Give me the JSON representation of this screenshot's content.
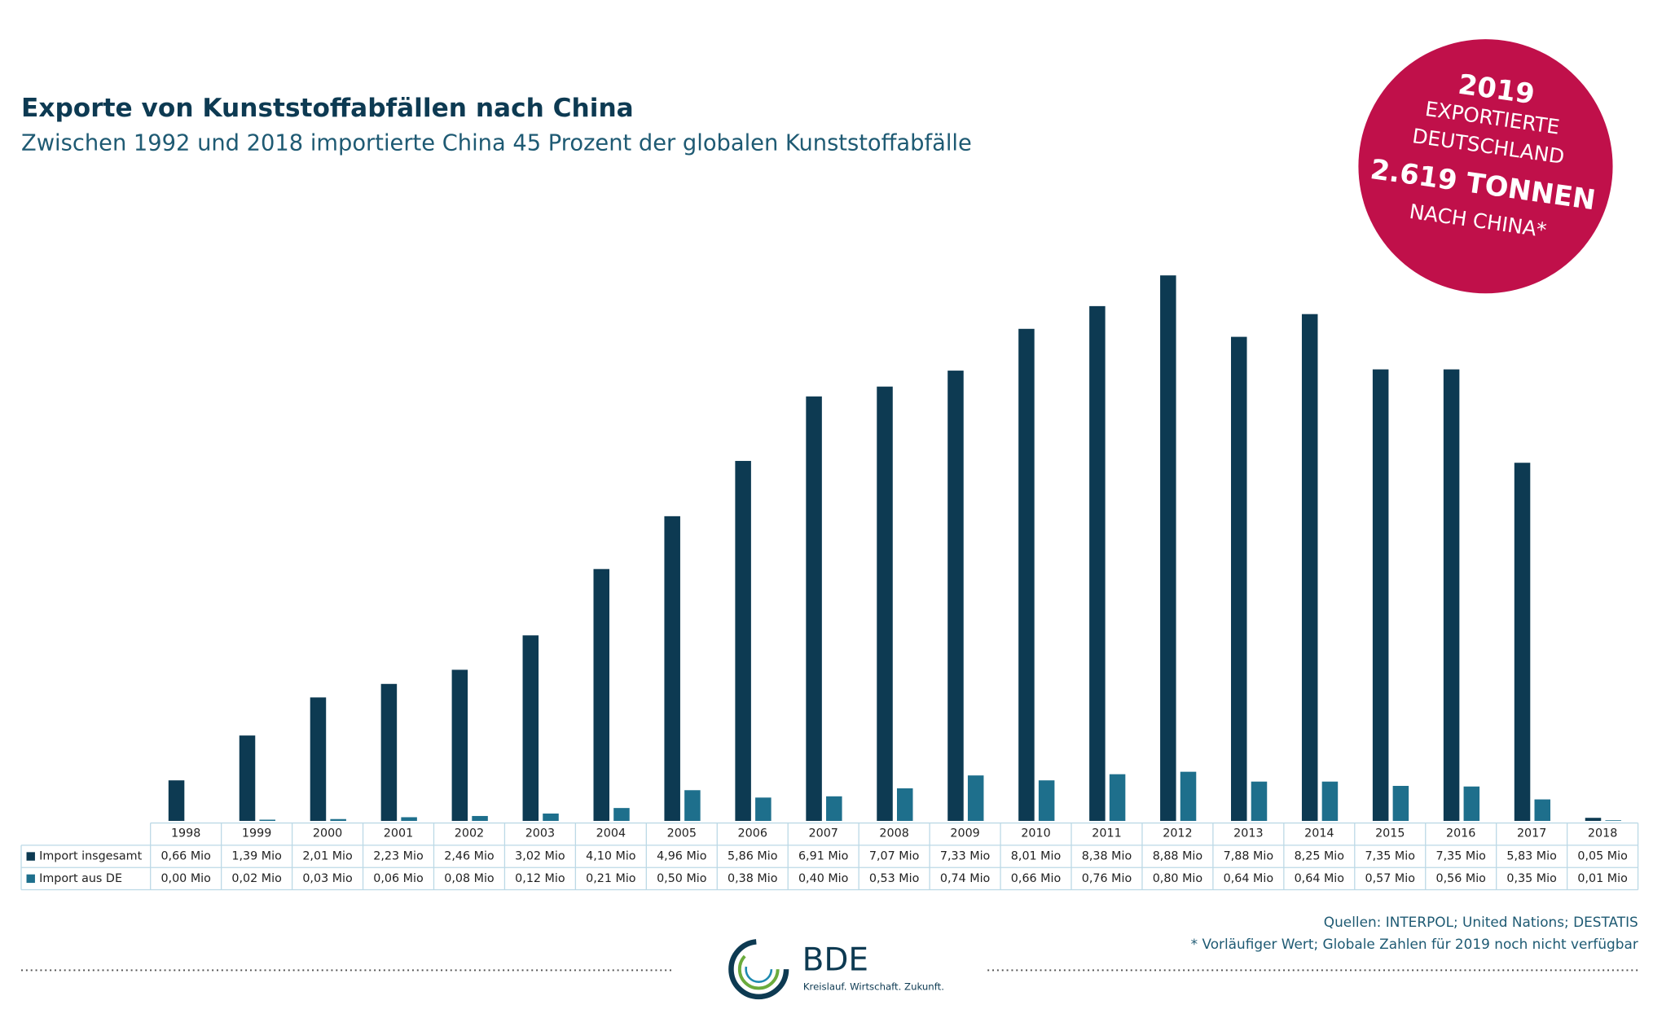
{
  "chart_data": {
    "type": "bar",
    "title": "Exporte von Kunststoffabfällen nach China",
    "subtitle": "Zwischen 1992 und 2018 importierte China 45 Prozent der globalen Kunststoffabfälle",
    "categories": [
      "1998",
      "1999",
      "2000",
      "2001",
      "2002",
      "2003",
      "2004",
      "2005",
      "2006",
      "2007",
      "2008",
      "2009",
      "2010",
      "2011",
      "2012",
      "2013",
      "2014",
      "2015",
      "2016",
      "2017",
      "2018"
    ],
    "series": [
      {
        "name": "Import insgesamt",
        "color": "#0d3a52",
        "values": [
          0.66,
          1.39,
          2.01,
          2.23,
          2.46,
          3.02,
          4.1,
          4.96,
          5.86,
          6.91,
          7.07,
          7.33,
          8.01,
          8.38,
          8.88,
          7.88,
          8.25,
          7.35,
          7.35,
          5.83,
          0.05
        ],
        "value_labels": [
          "0,66 Mio",
          "1,39 Mio",
          "2,01 Mio",
          "2,23 Mio",
          "2,46 Mio",
          "3,02 Mio",
          "4,10 Mio",
          "4,96 Mio",
          "5,86 Mio",
          "6,91 Mio",
          "7,07 Mio",
          "7,33 Mio",
          "8,01 Mio",
          "8,38 Mio",
          "8,88 Mio",
          "7,88 Mio",
          "8,25 Mio",
          "7,35 Mio",
          "7,35 Mio",
          "5,83 Mio",
          "0,05 Mio"
        ]
      },
      {
        "name": "Import aus DE",
        "color": "#1e6f8c",
        "values": [
          0.0,
          0.02,
          0.03,
          0.06,
          0.08,
          0.12,
          0.21,
          0.5,
          0.38,
          0.4,
          0.53,
          0.74,
          0.66,
          0.76,
          0.8,
          0.64,
          0.64,
          0.57,
          0.56,
          0.35,
          0.01
        ],
        "value_labels": [
          "0,00 Mio",
          "0,02 Mio",
          "0,03 Mio",
          "0,06 Mio",
          "0,08 Mio",
          "0,12 Mio",
          "0,21 Mio",
          "0,50 Mio",
          "0,38 Mio",
          "0,40 Mio",
          "0,53 Mio",
          "0,74 Mio",
          "0,66 Mio",
          "0,76 Mio",
          "0,80 Mio",
          "0,64 Mio",
          "0,64 Mio",
          "0,57 Mio",
          "0,56 Mio",
          "0,35 Mio",
          "0,01 Mio"
        ]
      }
    ],
    "annotation": {
      "color": "#c0104a",
      "lines": [
        "2019",
        "EXPORTIERTE",
        "DEUTSCHLAND",
        "2.619 TONNEN",
        "NACH CHINA*"
      ]
    },
    "sources": "Quellen: INTERPOL; United Nations; DESTATIS",
    "footnote": "* Vorläufiger Wert; Globale Zahlen für 2019 noch nicht verfügbar",
    "logo": {
      "name": "BDE",
      "tagline": "Kreislauf. Wirtschaft. Zukunft."
    }
  }
}
